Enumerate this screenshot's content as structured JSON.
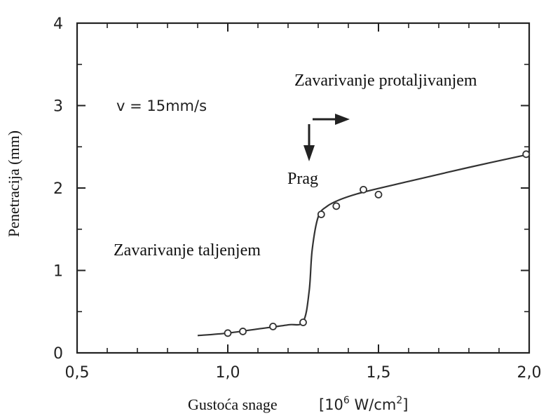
{
  "chart_data": {
    "type": "line",
    "xlabel": "Gustoća snage",
    "xlabel_unit": "[10",
    "xlabel_unit_exp": "6",
    "xlabel_unit_rest": " W/cm",
    "xlabel_unit_exp2": "2",
    "xlabel_unit_close": "]",
    "ylabel": "Penetracija (mm)",
    "xlim": [
      0.5,
      2.0
    ],
    "ylim": [
      0,
      4
    ],
    "x_ticks": [
      "0,5",
      "1,0",
      "1,5",
      "2,0"
    ],
    "x_tick_values": [
      0.5,
      1.0,
      1.5,
      2.0
    ],
    "y_ticks": [
      "0",
      "1",
      "2",
      "3",
      "4"
    ],
    "y_tick_values": [
      0,
      1,
      2,
      3,
      4
    ],
    "curve": {
      "x": [
        0.9,
        1.0,
        1.1,
        1.2,
        1.25,
        1.27,
        1.28,
        1.3,
        1.33,
        1.38,
        1.45,
        1.6,
        1.8,
        2.0
      ],
      "y": [
        0.21,
        0.24,
        0.29,
        0.34,
        0.38,
        0.75,
        1.25,
        1.65,
        1.78,
        1.87,
        1.95,
        2.08,
        2.25,
        2.41
      ]
    },
    "points": {
      "x": [
        1.0,
        1.05,
        1.15,
        1.25,
        1.31,
        1.36,
        1.45,
        1.5,
        1.99
      ],
      "y": [
        0.24,
        0.26,
        0.32,
        0.37,
        1.68,
        1.78,
        1.98,
        1.92,
        2.41
      ]
    },
    "annotations": {
      "speed": "v = 15mm/s",
      "threshold": "Prag",
      "conduction": "Zavarivanje taljenjem",
      "keyhole": "Zavarivanje protaljivanjem"
    }
  }
}
